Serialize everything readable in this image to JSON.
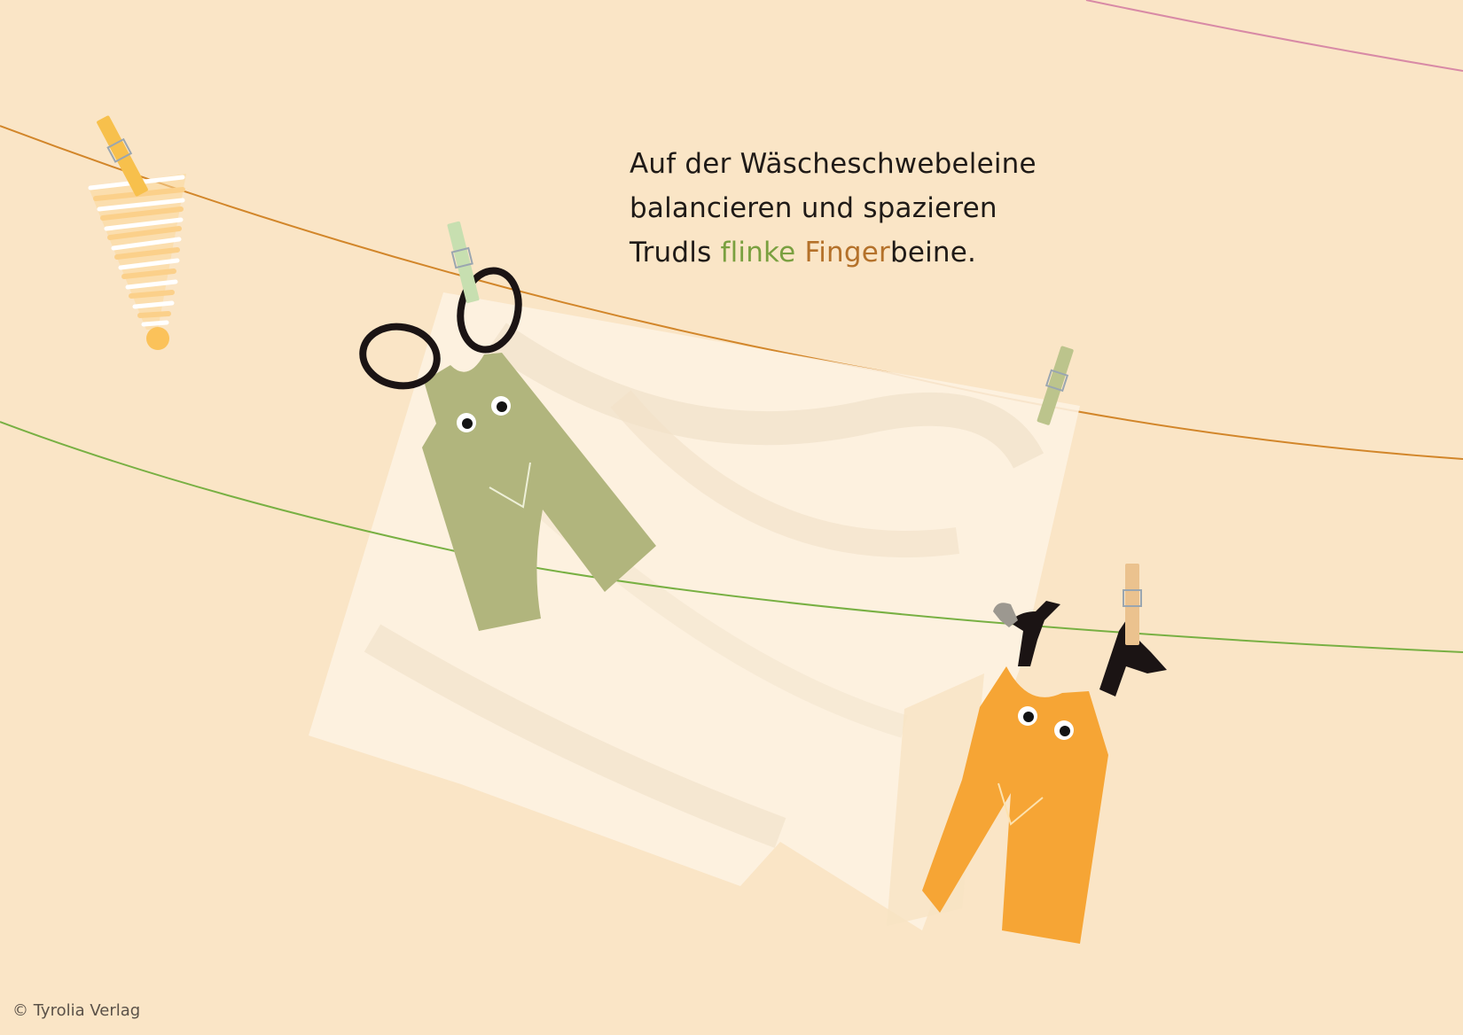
{
  "verse": {
    "line1": "Auf der Wäscheschwebeleine",
    "line2": "balancieren und spazieren",
    "line3": {
      "part1": "Trudls ",
      "part2": "flinke",
      "part3": " ",
      "part4": "Finger",
      "part5": "beine."
    }
  },
  "copyright": "© Tyrolia Verlag",
  "colors": {
    "background": "#fae5c6",
    "text": "#1f1a17",
    "green_word": "#7aa040",
    "brown_word": "#b4712a",
    "line_orange": "#d2862a",
    "line_green": "#78b043",
    "line_pink": "#d88aa6",
    "overall_green": "#b1b57d",
    "overall_orange": "#f6a535",
    "sheet": "#fdf3e3"
  }
}
